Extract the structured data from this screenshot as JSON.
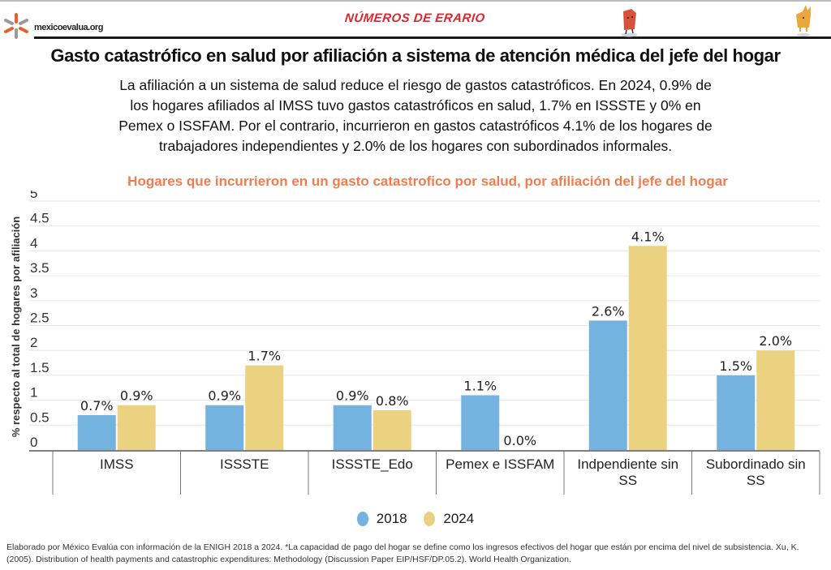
{
  "header": {
    "site_name": "mexicoevalua.org",
    "brand": "NÚMEROS DE ERARIO",
    "left-logo-icon": "star-burst-logo-icon",
    "mascot_icons": [
      "red-document-mascot-icon",
      "yellow-cat-mascot-icon"
    ]
  },
  "title": "Gasto catastrófico en salud por afiliación a sistema de atención médica del jefe del hogar",
  "description_lines": [
    "La afiliación a un sistema de salud reduce el riesgo de gastos catastróficos. En 2024, 0.9% de",
    "los hogares afiliados al IMSS tuvo gastos catastróficos en salud, 1.7% en ISSSTE y 0% en",
    "Pemex o ISSFAM. Por el contrario, incurrieron  en gastos catastróficos 4.1% de los hogares de",
    "trabajadores independientes y 2.0% de los hogares con subordinados informales."
  ],
  "colors": {
    "series_2018": "#74b3e0",
    "series_2024": "#ebd281",
    "subtitle": "#ef7d4f",
    "grid": "#e6e6e6",
    "axis": "#555555"
  },
  "chart_data": {
    "type": "bar",
    "title": "Hogares que incurrieron en un gasto catastrofico por salud, por afiliación del jefe del hogar",
    "xlabel": "",
    "ylabel": "% respecto al total de hogares por afiliación",
    "ylim": [
      0,
      5
    ],
    "yticks": [
      "0",
      "0.5",
      "1",
      "1.5",
      "2",
      "2.5",
      "3",
      "3.5",
      "4",
      "4.5",
      "5"
    ],
    "grid": true,
    "legend_position": "bottom-center",
    "categories": [
      [
        "IMSS"
      ],
      [
        "ISSSTE"
      ],
      [
        "ISSSTE_Edo"
      ],
      [
        "Pemex e ISSFAM"
      ],
      [
        "Indpendiente sin",
        "SS"
      ],
      [
        "Subordinado sin",
        "SS"
      ]
    ],
    "series": [
      {
        "name": "2018",
        "values": [
          0.7,
          0.9,
          0.9,
          1.1,
          2.6,
          1.5
        ],
        "labels": [
          "0.7%",
          "0.9%",
          "0.9%",
          "1.1%",
          "2.6%",
          "1.5%"
        ]
      },
      {
        "name": "2024",
        "values": [
          0.9,
          1.7,
          0.8,
          0.0,
          4.1,
          2.0
        ],
        "labels": [
          "0.9%",
          "1.7%",
          "0.8%",
          "0.0%",
          "4.1%",
          "2.0%"
        ]
      }
    ]
  },
  "footer": "Elaborado por México Evalúa con información de la ENIGH 2018 a 2024. *La capacidad de pago del hogar se define como los ingresos efectivos del hogar que están por encima del nivel de subsistencia. Xu, K. (2005). Distribution of health payments and catastrophic expenditures: Methodology (Discussion Paper EIP/HSF/DP.05.2). World Health Organization."
}
